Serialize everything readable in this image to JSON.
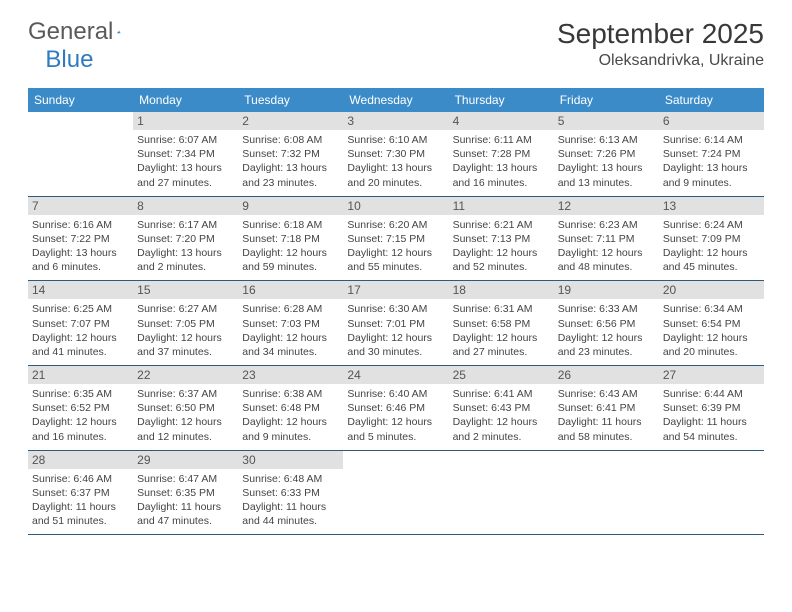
{
  "logo": {
    "word1": "General",
    "word2": "Blue"
  },
  "title": "September 2025",
  "location": "Oleksandrivka, Ukraine",
  "header_bg": "#3b8bc9",
  "daynum_bg": "#e1e1e1",
  "rule_color": "#2c5a80",
  "dow": [
    "Sunday",
    "Monday",
    "Tuesday",
    "Wednesday",
    "Thursday",
    "Friday",
    "Saturday"
  ],
  "weeks": [
    [
      {
        "n": "",
        "lines": [
          "",
          "",
          "",
          ""
        ]
      },
      {
        "n": "1",
        "lines": [
          "Sunrise: 6:07 AM",
          "Sunset: 7:34 PM",
          "Daylight: 13 hours",
          "and 27 minutes."
        ]
      },
      {
        "n": "2",
        "lines": [
          "Sunrise: 6:08 AM",
          "Sunset: 7:32 PM",
          "Daylight: 13 hours",
          "and 23 minutes."
        ]
      },
      {
        "n": "3",
        "lines": [
          "Sunrise: 6:10 AM",
          "Sunset: 7:30 PM",
          "Daylight: 13 hours",
          "and 20 minutes."
        ]
      },
      {
        "n": "4",
        "lines": [
          "Sunrise: 6:11 AM",
          "Sunset: 7:28 PM",
          "Daylight: 13 hours",
          "and 16 minutes."
        ]
      },
      {
        "n": "5",
        "lines": [
          "Sunrise: 6:13 AM",
          "Sunset: 7:26 PM",
          "Daylight: 13 hours",
          "and 13 minutes."
        ]
      },
      {
        "n": "6",
        "lines": [
          "Sunrise: 6:14 AM",
          "Sunset: 7:24 PM",
          "Daylight: 13 hours",
          "and 9 minutes."
        ]
      }
    ],
    [
      {
        "n": "7",
        "lines": [
          "Sunrise: 6:16 AM",
          "Sunset: 7:22 PM",
          "Daylight: 13 hours",
          "and 6 minutes."
        ]
      },
      {
        "n": "8",
        "lines": [
          "Sunrise: 6:17 AM",
          "Sunset: 7:20 PM",
          "Daylight: 13 hours",
          "and 2 minutes."
        ]
      },
      {
        "n": "9",
        "lines": [
          "Sunrise: 6:18 AM",
          "Sunset: 7:18 PM",
          "Daylight: 12 hours",
          "and 59 minutes."
        ]
      },
      {
        "n": "10",
        "lines": [
          "Sunrise: 6:20 AM",
          "Sunset: 7:15 PM",
          "Daylight: 12 hours",
          "and 55 minutes."
        ]
      },
      {
        "n": "11",
        "lines": [
          "Sunrise: 6:21 AM",
          "Sunset: 7:13 PM",
          "Daylight: 12 hours",
          "and 52 minutes."
        ]
      },
      {
        "n": "12",
        "lines": [
          "Sunrise: 6:23 AM",
          "Sunset: 7:11 PM",
          "Daylight: 12 hours",
          "and 48 minutes."
        ]
      },
      {
        "n": "13",
        "lines": [
          "Sunrise: 6:24 AM",
          "Sunset: 7:09 PM",
          "Daylight: 12 hours",
          "and 45 minutes."
        ]
      }
    ],
    [
      {
        "n": "14",
        "lines": [
          "Sunrise: 6:25 AM",
          "Sunset: 7:07 PM",
          "Daylight: 12 hours",
          "and 41 minutes."
        ]
      },
      {
        "n": "15",
        "lines": [
          "Sunrise: 6:27 AM",
          "Sunset: 7:05 PM",
          "Daylight: 12 hours",
          "and 37 minutes."
        ]
      },
      {
        "n": "16",
        "lines": [
          "Sunrise: 6:28 AM",
          "Sunset: 7:03 PM",
          "Daylight: 12 hours",
          "and 34 minutes."
        ]
      },
      {
        "n": "17",
        "lines": [
          "Sunrise: 6:30 AM",
          "Sunset: 7:01 PM",
          "Daylight: 12 hours",
          "and 30 minutes."
        ]
      },
      {
        "n": "18",
        "lines": [
          "Sunrise: 6:31 AM",
          "Sunset: 6:58 PM",
          "Daylight: 12 hours",
          "and 27 minutes."
        ]
      },
      {
        "n": "19",
        "lines": [
          "Sunrise: 6:33 AM",
          "Sunset: 6:56 PM",
          "Daylight: 12 hours",
          "and 23 minutes."
        ]
      },
      {
        "n": "20",
        "lines": [
          "Sunrise: 6:34 AM",
          "Sunset: 6:54 PM",
          "Daylight: 12 hours",
          "and 20 minutes."
        ]
      }
    ],
    [
      {
        "n": "21",
        "lines": [
          "Sunrise: 6:35 AM",
          "Sunset: 6:52 PM",
          "Daylight: 12 hours",
          "and 16 minutes."
        ]
      },
      {
        "n": "22",
        "lines": [
          "Sunrise: 6:37 AM",
          "Sunset: 6:50 PM",
          "Daylight: 12 hours",
          "and 12 minutes."
        ]
      },
      {
        "n": "23",
        "lines": [
          "Sunrise: 6:38 AM",
          "Sunset: 6:48 PM",
          "Daylight: 12 hours",
          "and 9 minutes."
        ]
      },
      {
        "n": "24",
        "lines": [
          "Sunrise: 6:40 AM",
          "Sunset: 6:46 PM",
          "Daylight: 12 hours",
          "and 5 minutes."
        ]
      },
      {
        "n": "25",
        "lines": [
          "Sunrise: 6:41 AM",
          "Sunset: 6:43 PM",
          "Daylight: 12 hours",
          "and 2 minutes."
        ]
      },
      {
        "n": "26",
        "lines": [
          "Sunrise: 6:43 AM",
          "Sunset: 6:41 PM",
          "Daylight: 11 hours",
          "and 58 minutes."
        ]
      },
      {
        "n": "27",
        "lines": [
          "Sunrise: 6:44 AM",
          "Sunset: 6:39 PM",
          "Daylight: 11 hours",
          "and 54 minutes."
        ]
      }
    ],
    [
      {
        "n": "28",
        "lines": [
          "Sunrise: 6:46 AM",
          "Sunset: 6:37 PM",
          "Daylight: 11 hours",
          "and 51 minutes."
        ]
      },
      {
        "n": "29",
        "lines": [
          "Sunrise: 6:47 AM",
          "Sunset: 6:35 PM",
          "Daylight: 11 hours",
          "and 47 minutes."
        ]
      },
      {
        "n": "30",
        "lines": [
          "Sunrise: 6:48 AM",
          "Sunset: 6:33 PM",
          "Daylight: 11 hours",
          "and 44 minutes."
        ]
      },
      {
        "n": "",
        "lines": [
          "",
          "",
          "",
          ""
        ]
      },
      {
        "n": "",
        "lines": [
          "",
          "",
          "",
          ""
        ]
      },
      {
        "n": "",
        "lines": [
          "",
          "",
          "",
          ""
        ]
      },
      {
        "n": "",
        "lines": [
          "",
          "",
          "",
          ""
        ]
      }
    ]
  ]
}
